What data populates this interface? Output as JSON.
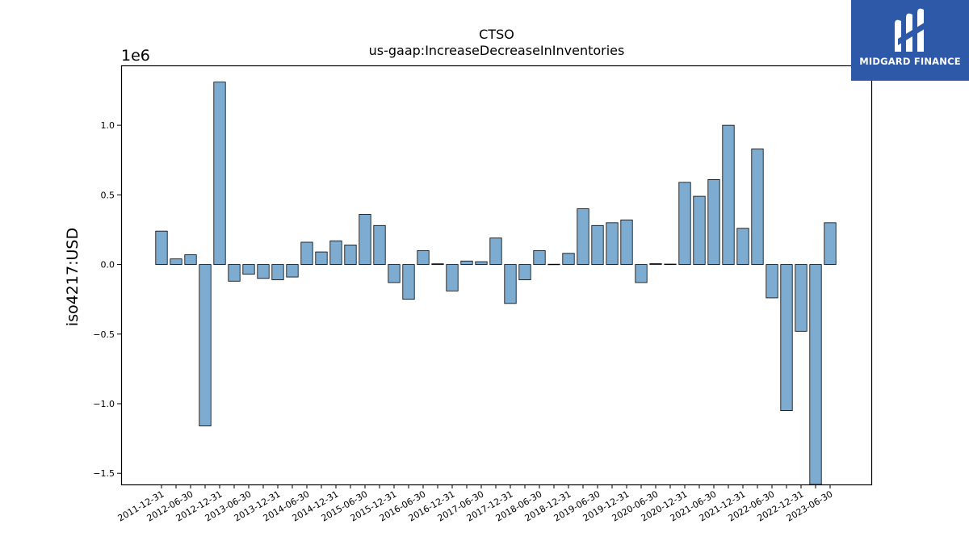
{
  "logo": {
    "text": "MIDGARD FINANCE",
    "color": "#2d59a8"
  },
  "chart_data": {
    "type": "bar",
    "title": "CTSO",
    "subtitle": "us-gaap:IncreaseDecreaseInInventories",
    "ylabel": "iso4217:USD",
    "xlabel": "",
    "offset_label": "1e6",
    "ylim": [
      -1.58,
      1.43
    ],
    "yticks": [
      -1.5,
      -1.0,
      -0.5,
      0.0,
      0.5,
      1.0
    ],
    "ytick_labels": [
      "−1.5",
      "−1.0",
      "−0.5",
      "0.0",
      "0.5",
      "1.0"
    ],
    "bar_color": "#7eacd1",
    "categories": [
      "2011-12-31",
      "2012-03-31",
      "2012-06-30",
      "2012-09-30",
      "2012-12-31",
      "2013-03-31",
      "2013-06-30",
      "2013-09-30",
      "2013-12-31",
      "2014-03-31",
      "2014-06-30",
      "2014-09-30",
      "2014-12-31",
      "2015-03-31",
      "2015-06-30",
      "2015-09-30",
      "2015-12-31",
      "2016-03-31",
      "2016-06-30",
      "2016-09-30",
      "2016-12-31",
      "2017-03-31",
      "2017-06-30",
      "2017-09-30",
      "2017-12-31",
      "2018-03-31",
      "2018-06-30",
      "2018-09-30",
      "2018-12-31",
      "2019-03-31",
      "2019-06-30",
      "2019-09-30",
      "2019-12-31",
      "2020-03-31",
      "2020-06-30",
      "2020-09-30",
      "2020-12-31",
      "2021-03-31",
      "2021-06-30",
      "2021-09-30",
      "2021-12-31",
      "2022-03-31",
      "2022-06-30",
      "2022-09-30",
      "2022-12-31",
      "2023-03-31",
      "2023-06-30"
    ],
    "values": [
      0.24,
      0.04,
      0.07,
      -1.16,
      1.31,
      -0.12,
      -0.07,
      -0.1,
      -0.11,
      -0.09,
      0.16,
      0.09,
      0.17,
      0.14,
      0.36,
      0.28,
      -0.13,
      -0.25,
      0.1,
      0.005,
      -0.19,
      0.025,
      0.02,
      0.19,
      -0.28,
      -0.11,
      0.1,
      0.002,
      0.08,
      0.4,
      0.28,
      0.3,
      0.32,
      -0.13,
      0.006,
      0.003,
      0.59,
      0.49,
      0.61,
      1.0,
      0.26,
      0.83,
      -0.24,
      -1.05,
      -0.48,
      -1.58,
      0.3
    ],
    "tick_label_every": 2,
    "grid": false,
    "legend": "none"
  }
}
